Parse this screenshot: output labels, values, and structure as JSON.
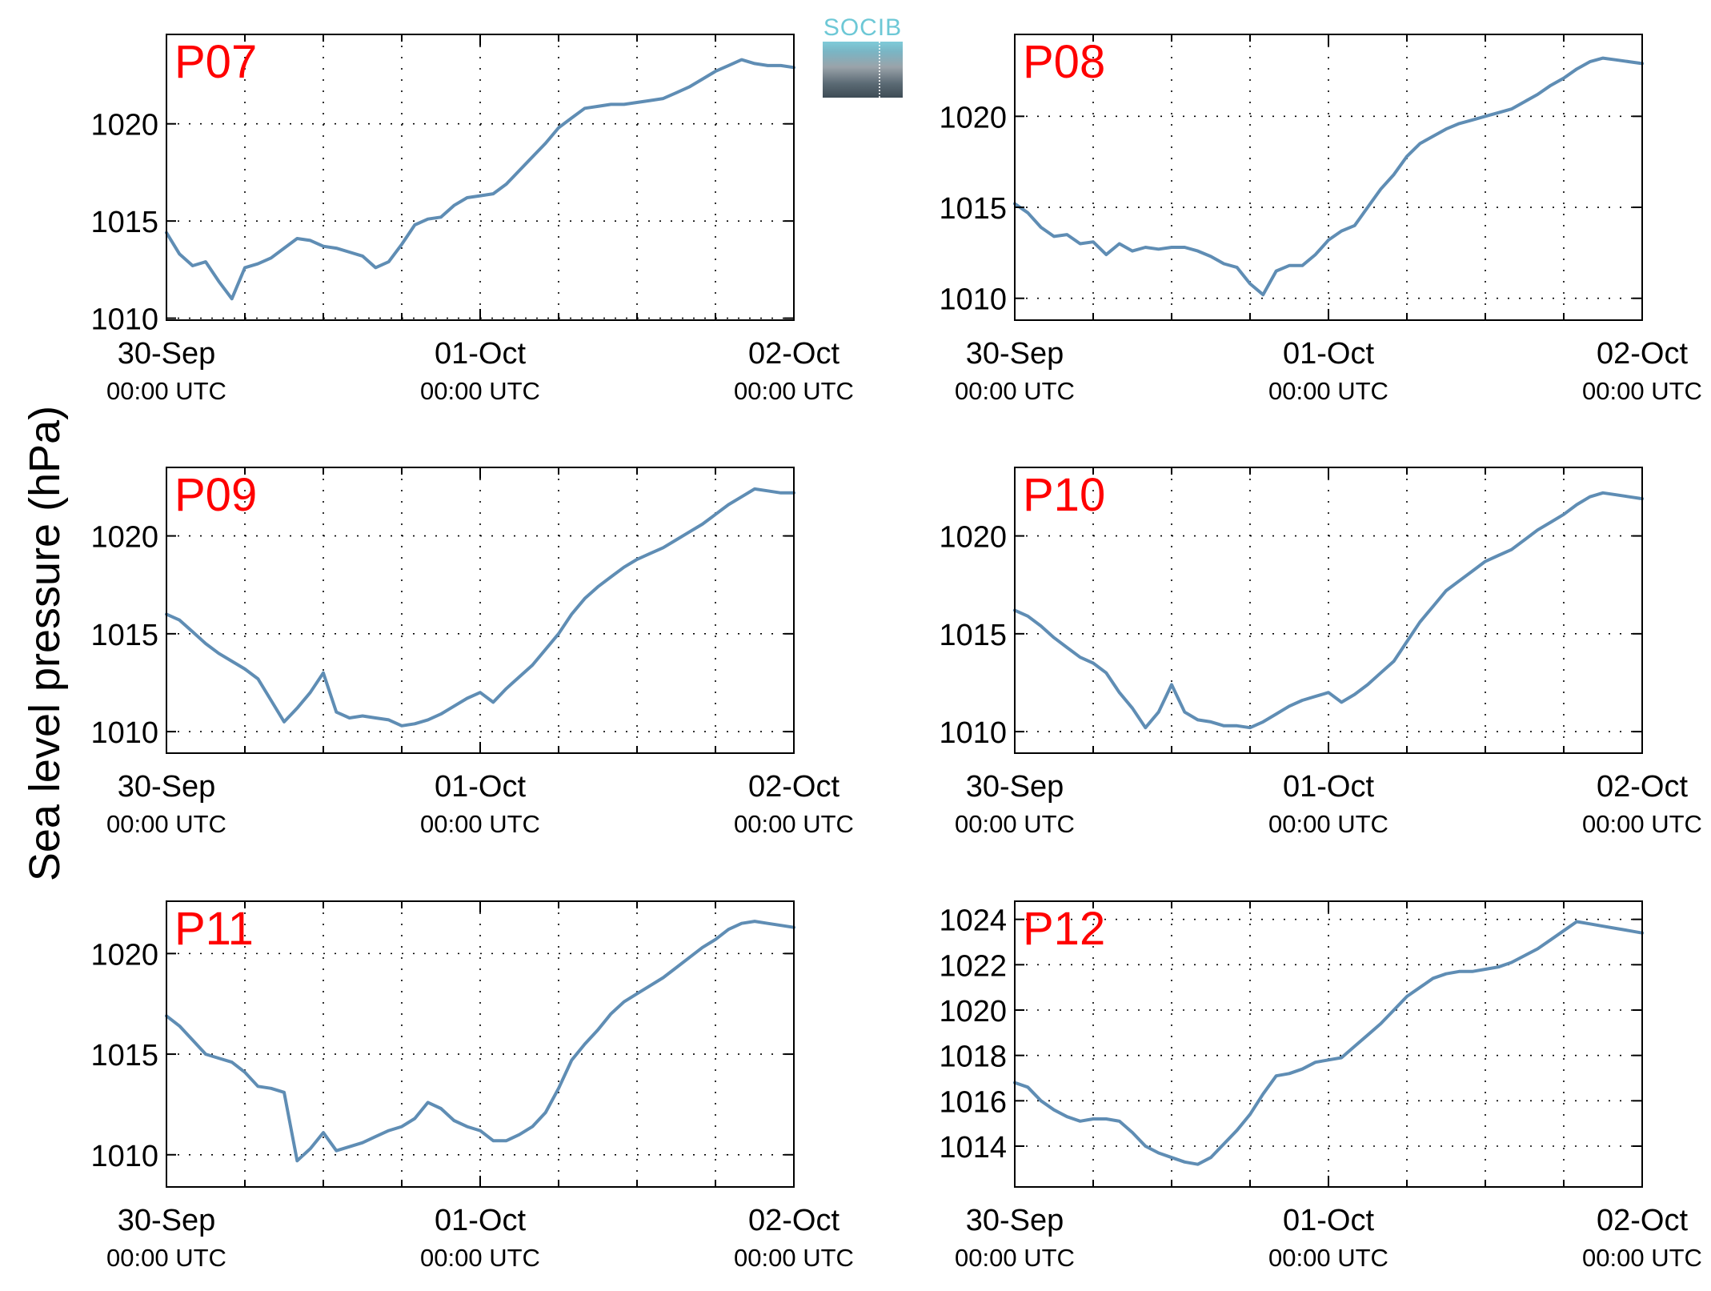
{
  "ylabel": "Sea level pressure (hPa)",
  "logo": {
    "text": "SOCIB"
  },
  "colors": {
    "line": "#5f8db4",
    "panel_label": "#ff0000"
  },
  "chart_data": [
    {
      "type": "line",
      "title": "P07",
      "x_ticks": [
        {
          "t": 0,
          "day": "30-Sep",
          "time": "00:00 UTC"
        },
        {
          "t": 24,
          "day": "01-Oct",
          "time": "00:00 UTC"
        },
        {
          "t": 48,
          "day": "02-Oct",
          "time": "00:00 UTC"
        }
      ],
      "xlim": [
        0,
        48
      ],
      "ylim": [
        1009.9,
        1024.6
      ],
      "yticks": [
        1010,
        1015,
        1020
      ],
      "series": [
        {
          "x": [
            0,
            1,
            2,
            3,
            4,
            5,
            6,
            7,
            8,
            9,
            10,
            11,
            12,
            13,
            14,
            15,
            16,
            17,
            18,
            19,
            20,
            21,
            22,
            23,
            24,
            25,
            26,
            27,
            28,
            29,
            30,
            31,
            32,
            33,
            34,
            35,
            36,
            37,
            38,
            39,
            40,
            41,
            42,
            43,
            44,
            45,
            46,
            47,
            48
          ],
          "y": [
            1014.4,
            1013.3,
            1012.7,
            1012.9,
            1011.9,
            1011.0,
            1012.6,
            1012.8,
            1013.1,
            1013.6,
            1014.1,
            1014.0,
            1013.7,
            1013.6,
            1013.4,
            1013.2,
            1012.6,
            1012.9,
            1013.8,
            1014.8,
            1015.1,
            1015.2,
            1015.8,
            1016.2,
            1016.3,
            1016.4,
            1016.9,
            1017.6,
            1018.3,
            1019.0,
            1019.8,
            1020.3,
            1020.8,
            1020.9,
            1021.0,
            1021.0,
            1021.1,
            1021.2,
            1021.3,
            1021.6,
            1021.9,
            1022.3,
            1022.7,
            1023.0,
            1023.3,
            1023.1,
            1023.0,
            1023.0,
            1022.9
          ]
        }
      ]
    },
    {
      "type": "line",
      "title": "P08",
      "x_ticks": [
        {
          "t": 0,
          "day": "30-Sep",
          "time": "00:00 UTC"
        },
        {
          "t": 24,
          "day": "01-Oct",
          "time": "00:00 UTC"
        },
        {
          "t": 48,
          "day": "02-Oct",
          "time": "00:00 UTC"
        }
      ],
      "xlim": [
        0,
        48
      ],
      "ylim": [
        1008.8,
        1024.5
      ],
      "yticks": [
        1010,
        1015,
        1020
      ],
      "series": [
        {
          "x": [
            0,
            1,
            2,
            3,
            4,
            5,
            6,
            7,
            8,
            9,
            10,
            11,
            12,
            13,
            14,
            15,
            16,
            17,
            18,
            19,
            20,
            21,
            22,
            23,
            24,
            25,
            26,
            27,
            28,
            29,
            30,
            31,
            32,
            33,
            34,
            35,
            36,
            37,
            38,
            39,
            40,
            41,
            42,
            43,
            44,
            45,
            46,
            47,
            48
          ],
          "y": [
            1015.2,
            1014.7,
            1013.9,
            1013.4,
            1013.5,
            1013.0,
            1013.1,
            1012.4,
            1013.0,
            1012.6,
            1012.8,
            1012.7,
            1012.8,
            1012.8,
            1012.6,
            1012.3,
            1011.9,
            1011.7,
            1010.8,
            1010.2,
            1011.5,
            1011.8,
            1011.8,
            1012.4,
            1013.2,
            1013.7,
            1014.0,
            1015.0,
            1016.0,
            1016.8,
            1017.8,
            1018.5,
            1018.9,
            1019.3,
            1019.6,
            1019.8,
            1020.0,
            1020.2,
            1020.4,
            1020.8,
            1021.2,
            1021.7,
            1022.1,
            1022.6,
            1023.0,
            1023.2,
            1023.1,
            1023.0,
            1022.9
          ]
        }
      ]
    },
    {
      "type": "line",
      "title": "P09",
      "x_ticks": [
        {
          "t": 0,
          "day": "30-Sep",
          "time": "00:00 UTC"
        },
        {
          "t": 24,
          "day": "01-Oct",
          "time": "00:00 UTC"
        },
        {
          "t": 48,
          "day": "02-Oct",
          "time": "00:00 UTC"
        }
      ],
      "xlim": [
        0,
        48
      ],
      "ylim": [
        1008.9,
        1023.5
      ],
      "yticks": [
        1010,
        1015,
        1020
      ],
      "series": [
        {
          "x": [
            0,
            1,
            2,
            3,
            4,
            5,
            6,
            7,
            8,
            9,
            10,
            11,
            12,
            13,
            14,
            15,
            16,
            17,
            18,
            19,
            20,
            21,
            22,
            23,
            24,
            25,
            26,
            27,
            28,
            29,
            30,
            31,
            32,
            33,
            34,
            35,
            36,
            37,
            38,
            39,
            40,
            41,
            42,
            43,
            44,
            45,
            46,
            47,
            48
          ],
          "y": [
            1016.0,
            1015.7,
            1015.1,
            1014.5,
            1014.0,
            1013.6,
            1013.2,
            1012.7,
            1011.6,
            1010.5,
            1011.2,
            1012.0,
            1013.0,
            1011.0,
            1010.7,
            1010.8,
            1010.7,
            1010.6,
            1010.3,
            1010.4,
            1010.6,
            1010.9,
            1011.3,
            1011.7,
            1012.0,
            1011.5,
            1012.2,
            1012.8,
            1013.4,
            1014.2,
            1015.0,
            1016.0,
            1016.8,
            1017.4,
            1017.9,
            1018.4,
            1018.8,
            1019.1,
            1019.4,
            1019.8,
            1020.2,
            1020.6,
            1021.1,
            1021.6,
            1022.0,
            1022.4,
            1022.3,
            1022.2,
            1022.2
          ]
        }
      ]
    },
    {
      "type": "line",
      "title": "P10",
      "x_ticks": [
        {
          "t": 0,
          "day": "30-Sep",
          "time": "00:00 UTC"
        },
        {
          "t": 24,
          "day": "01-Oct",
          "time": "00:00 UTC"
        },
        {
          "t": 48,
          "day": "02-Oct",
          "time": "00:00 UTC"
        }
      ],
      "xlim": [
        0,
        48
      ],
      "ylim": [
        1008.9,
        1023.5
      ],
      "yticks": [
        1010,
        1015,
        1020
      ],
      "series": [
        {
          "x": [
            0,
            1,
            2,
            3,
            4,
            5,
            6,
            7,
            8,
            9,
            10,
            11,
            12,
            13,
            14,
            15,
            16,
            17,
            18,
            19,
            20,
            21,
            22,
            23,
            24,
            25,
            26,
            27,
            28,
            29,
            30,
            31,
            32,
            33,
            34,
            35,
            36,
            37,
            38,
            39,
            40,
            41,
            42,
            43,
            44,
            45,
            46,
            47,
            48
          ],
          "y": [
            1016.2,
            1015.9,
            1015.4,
            1014.8,
            1014.3,
            1013.8,
            1013.5,
            1013.0,
            1012.0,
            1011.2,
            1010.2,
            1011.0,
            1012.4,
            1011.0,
            1010.6,
            1010.5,
            1010.3,
            1010.3,
            1010.2,
            1010.5,
            1010.9,
            1011.3,
            1011.6,
            1011.8,
            1012.0,
            1011.5,
            1011.9,
            1012.4,
            1013.0,
            1013.6,
            1014.6,
            1015.6,
            1016.4,
            1017.2,
            1017.7,
            1018.2,
            1018.7,
            1019.0,
            1019.3,
            1019.8,
            1020.3,
            1020.7,
            1021.1,
            1021.6,
            1022.0,
            1022.2,
            1022.1,
            1022.0,
            1021.9
          ]
        }
      ]
    },
    {
      "type": "line",
      "title": "P11",
      "x_ticks": [
        {
          "t": 0,
          "day": "30-Sep",
          "time": "00:00 UTC"
        },
        {
          "t": 24,
          "day": "01-Oct",
          "time": "00:00 UTC"
        },
        {
          "t": 48,
          "day": "02-Oct",
          "time": "00:00 UTC"
        }
      ],
      "xlim": [
        0,
        48
      ],
      "ylim": [
        1008.4,
        1022.6
      ],
      "yticks": [
        1010,
        1015,
        1020
      ],
      "series": [
        {
          "x": [
            0,
            1,
            2,
            3,
            4,
            5,
            6,
            7,
            8,
            9,
            10,
            11,
            12,
            13,
            14,
            15,
            16,
            17,
            18,
            19,
            20,
            21,
            22,
            23,
            24,
            25,
            26,
            27,
            28,
            29,
            30,
            31,
            32,
            33,
            34,
            35,
            36,
            37,
            38,
            39,
            40,
            41,
            42,
            43,
            44,
            45,
            46,
            47,
            48
          ],
          "y": [
            1016.9,
            1016.4,
            1015.7,
            1015.0,
            1014.8,
            1014.6,
            1014.1,
            1013.4,
            1013.3,
            1013.1,
            1009.7,
            1010.3,
            1011.1,
            1010.2,
            1010.4,
            1010.6,
            1010.9,
            1011.2,
            1011.4,
            1011.8,
            1012.6,
            1012.3,
            1011.7,
            1011.4,
            1011.2,
            1010.7,
            1010.7,
            1011.0,
            1011.4,
            1012.1,
            1013.3,
            1014.7,
            1015.5,
            1016.2,
            1017.0,
            1017.6,
            1018.0,
            1018.4,
            1018.8,
            1019.3,
            1019.8,
            1020.3,
            1020.7,
            1021.2,
            1021.5,
            1021.6,
            1021.5,
            1021.4,
            1021.3
          ]
        }
      ]
    },
    {
      "type": "line",
      "title": "P12",
      "x_ticks": [
        {
          "t": 0,
          "day": "30-Sep",
          "time": "00:00 UTC"
        },
        {
          "t": 24,
          "day": "01-Oct",
          "time": "00:00 UTC"
        },
        {
          "t": 48,
          "day": "02-Oct",
          "time": "00:00 UTC"
        }
      ],
      "xlim": [
        0,
        48
      ],
      "ylim": [
        1012.2,
        1024.8
      ],
      "yticks": [
        1014,
        1016,
        1018,
        1020,
        1022,
        1024
      ],
      "series": [
        {
          "x": [
            0,
            1,
            2,
            3,
            4,
            5,
            6,
            7,
            8,
            9,
            10,
            11,
            12,
            13,
            14,
            15,
            16,
            17,
            18,
            19,
            20,
            21,
            22,
            23,
            24,
            25,
            26,
            27,
            28,
            29,
            30,
            31,
            32,
            33,
            34,
            35,
            36,
            37,
            38,
            39,
            40,
            41,
            42,
            43,
            44,
            45,
            46,
            47,
            48
          ],
          "y": [
            1016.8,
            1016.6,
            1016.0,
            1015.6,
            1015.3,
            1015.1,
            1015.2,
            1015.2,
            1015.1,
            1014.6,
            1014.0,
            1013.7,
            1013.5,
            1013.3,
            1013.2,
            1013.5,
            1014.1,
            1014.7,
            1015.4,
            1016.3,
            1017.1,
            1017.2,
            1017.4,
            1017.7,
            1017.8,
            1017.9,
            1018.4,
            1018.9,
            1019.4,
            1020.0,
            1020.6,
            1021.0,
            1021.4,
            1021.6,
            1021.7,
            1021.7,
            1021.8,
            1021.9,
            1022.1,
            1022.4,
            1022.7,
            1023.1,
            1023.5,
            1023.9,
            1023.8,
            1023.7,
            1023.6,
            1023.5,
            1023.4
          ]
        }
      ]
    }
  ]
}
